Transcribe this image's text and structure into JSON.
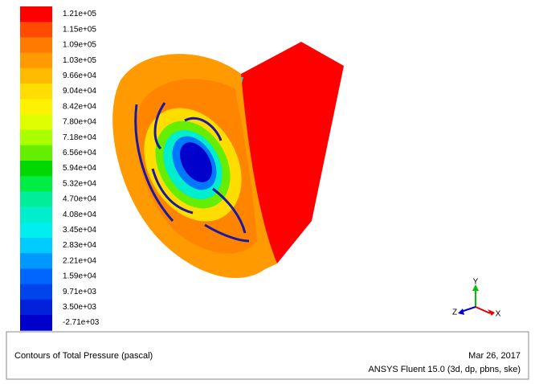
{
  "colorbar": {
    "levels": [
      {
        "label": "1.21e+05",
        "color": "#ff0000"
      },
      {
        "label": "1.15e+05",
        "color": "#ff4a00"
      },
      {
        "label": "1.09e+05",
        "color": "#ff7a00"
      },
      {
        "label": "1.03e+05",
        "color": "#ff9a00"
      },
      {
        "label": "9.66e+04",
        "color": "#ffbb00"
      },
      {
        "label": "9.04e+04",
        "color": "#ffdd00"
      },
      {
        "label": "8.42e+04",
        "color": "#fff200"
      },
      {
        "label": "7.80e+04",
        "color": "#ddff00"
      },
      {
        "label": "7.18e+04",
        "color": "#aaff00"
      },
      {
        "label": "6.56e+04",
        "color": "#66ee00"
      },
      {
        "label": "5.94e+04",
        "color": "#00d800"
      },
      {
        "label": "5.32e+04",
        "color": "#00ee44"
      },
      {
        "label": "4.70e+04",
        "color": "#00ee99"
      },
      {
        "label": "4.08e+04",
        "color": "#00eecc"
      },
      {
        "label": "3.45e+04",
        "color": "#00eeee"
      },
      {
        "label": "2.83e+04",
        "color": "#00ccff"
      },
      {
        "label": "2.21e+04",
        "color": "#0099ff"
      },
      {
        "label": "1.59e+04",
        "color": "#0066ff"
      },
      {
        "label": "9.71e+03",
        "color": "#0044ee"
      },
      {
        "label": "3.50e+03",
        "color": "#0022dd"
      },
      {
        "label": "-2.71e+03",
        "color": "#0000cc"
      }
    ]
  },
  "axes": {
    "y": "Y",
    "z": "Z",
    "x": "X"
  },
  "footer": {
    "title": "Contours of Total Pressure (pascal)",
    "date": "Mar 26, 2017",
    "software": "ANSYS Fluent 15.0 (3d, dp, pbns, ske)"
  }
}
